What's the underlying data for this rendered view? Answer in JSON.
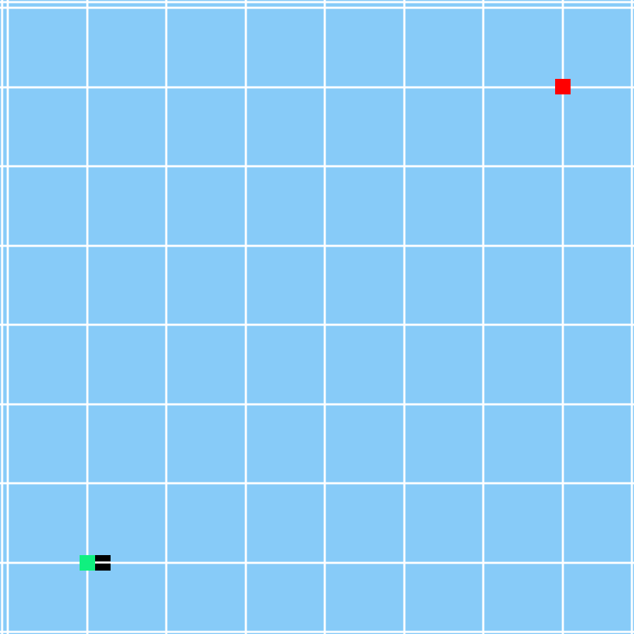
{
  "game": {
    "type": "snake",
    "grid_lines": 8,
    "colors": {
      "background": "#87cbf8",
      "grid": "#ffffff",
      "snake_head": "#000000",
      "snake_body": "#10f07f",
      "food": "#ff0000"
    },
    "snake": [
      {
        "row": 7,
        "col": 1,
        "part": "head"
      },
      {
        "row": 7,
        "col": 1,
        "part": "body"
      }
    ],
    "food": {
      "row": 1,
      "col": 7
    }
  }
}
